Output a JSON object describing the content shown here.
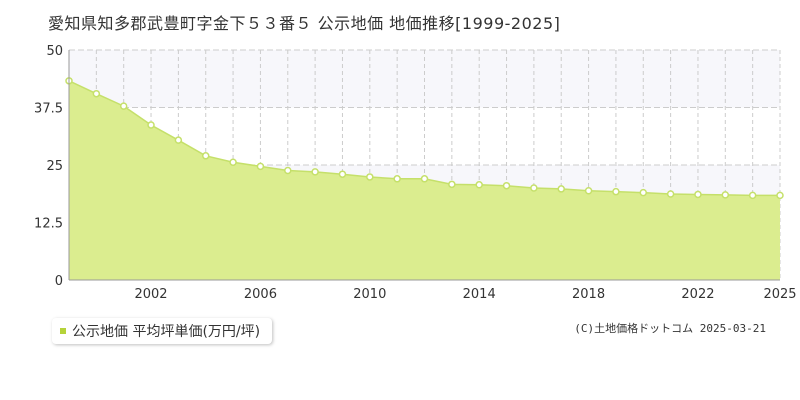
{
  "title": "愛知県知多郡武豊町字金下５３番５ 公示地価 地価推移[1999-2025]",
  "legend_label": "公示地価 平均坪単価(万円/坪)",
  "credit": "(C)土地価格ドットコム 2025-03-21",
  "colors": {
    "area_fill": "#dbed8f",
    "line": "#c5e06a",
    "marker_stroke": "#c5e06a",
    "marker_fill": "#ffffff",
    "legend_swatch": "#b5d33a",
    "band_fill": "#f7f7fb",
    "grid": "#cccccc",
    "axis_text": "#333333"
  },
  "chart_data": {
    "type": "area",
    "title": "愛知県知多郡武豊町字金下５３番５ 公示地価 地価推移[1999-2025]",
    "xlabel": "",
    "ylabel": "",
    "x": [
      1999,
      2000,
      2001,
      2002,
      2003,
      2004,
      2005,
      2006,
      2007,
      2008,
      2009,
      2010,
      2011,
      2012,
      2013,
      2014,
      2015,
      2016,
      2017,
      2018,
      2019,
      2020,
      2021,
      2022,
      2023,
      2024,
      2025
    ],
    "series": [
      {
        "name": "公示地価 平均坪単価(万円/坪)",
        "values": [
          43.3,
          40.5,
          37.8,
          33.7,
          30.4,
          27.0,
          25.6,
          24.7,
          23.8,
          23.5,
          23.0,
          22.4,
          22.0,
          22.0,
          20.8,
          20.7,
          20.5,
          20.0,
          19.8,
          19.4,
          19.2,
          19.0,
          18.7,
          18.6,
          18.5,
          18.4,
          18.4
        ]
      }
    ],
    "xlim": [
      1999,
      2025
    ],
    "ylim": [
      0,
      50
    ],
    "y_ticks": [
      0,
      12.5,
      25,
      37.5,
      50
    ],
    "y_tick_labels": [
      "0",
      "12.5",
      "25",
      "37.5",
      "50"
    ],
    "x_ticks": [
      2002,
      2006,
      2010,
      2014,
      2018,
      2022,
      2025
    ],
    "x_tick_labels": [
      "2002",
      "2006",
      "2010",
      "2014",
      "2018",
      "2022",
      "2025"
    ],
    "grid": true,
    "legend_position": "bottom-left"
  }
}
